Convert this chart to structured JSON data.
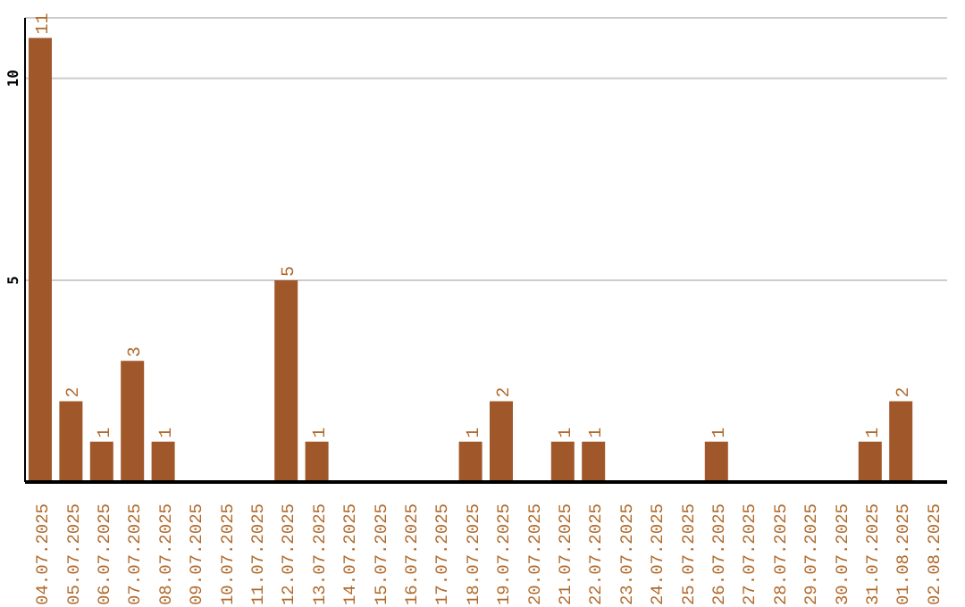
{
  "chart_data": {
    "type": "bar",
    "categories": [
      "04.07.2025",
      "05.07.2025",
      "06.07.2025",
      "07.07.2025",
      "08.07.2025",
      "09.07.2025",
      "10.07.2025",
      "11.07.2025",
      "12.07.2025",
      "13.07.2025",
      "14.07.2025",
      "15.07.2025",
      "16.07.2025",
      "17.07.2025",
      "18.07.2025",
      "19.07.2025",
      "20.07.2025",
      "21.07.2025",
      "22.07.2025",
      "23.07.2025",
      "24.07.2025",
      "25.07.2025",
      "26.07.2025",
      "27.07.2025",
      "28.07.2025",
      "29.07.2025",
      "30.07.2025",
      "31.07.2025",
      "01.08.2025",
      "02.08.2025"
    ],
    "values": [
      11,
      2,
      1,
      3,
      1,
      0,
      0,
      0,
      5,
      1,
      0,
      0,
      0,
      0,
      1,
      2,
      0,
      1,
      1,
      0,
      0,
      0,
      1,
      0,
      0,
      0,
      0,
      1,
      2,
      0
    ],
    "value_labels": [
      "11",
      "2",
      "1",
      "3",
      "1",
      null,
      null,
      null,
      "5",
      "1",
      null,
      null,
      null,
      null,
      "1",
      "2",
      null,
      "1",
      "1",
      null,
      null,
      null,
      "1",
      null,
      null,
      null,
      null,
      "1",
      "2",
      null
    ],
    "color": "#a0582a",
    "ylim": [
      0,
      11.5
    ],
    "yticks": [
      5,
      10
    ],
    "grid": "y"
  }
}
